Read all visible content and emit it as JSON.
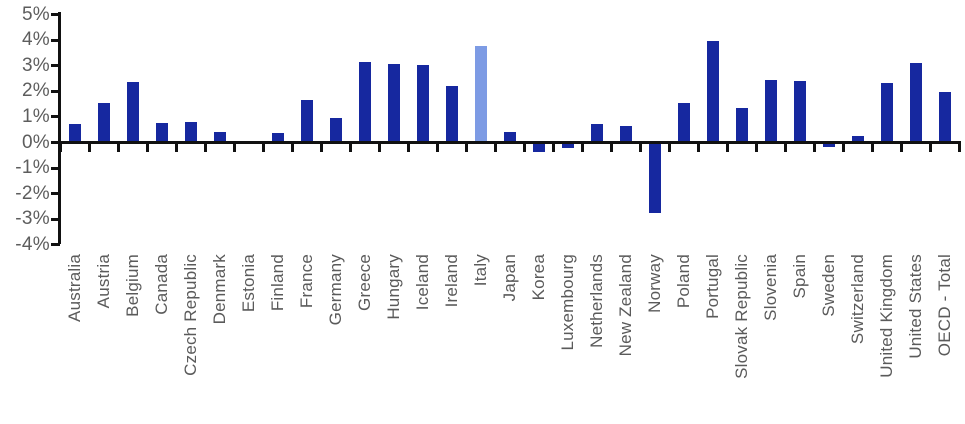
{
  "chart": {
    "bar_color": "#16289F",
    "highlight_color": "#7D9BE4",
    "axis_color": "#111111",
    "y_tick_labels": [
      "5%",
      "4%",
      "3%",
      "2%",
      "1%",
      "0%",
      "-1%",
      "-2%",
      "-3%",
      "-4%"
    ]
  },
  "chart_data": {
    "type": "bar",
    "title": "",
    "xlabel": "",
    "ylabel": "",
    "unit": "%",
    "ylim": [
      -4,
      5
    ],
    "grid": false,
    "legend": "none",
    "highlighted_category": "Italy",
    "categories": [
      "Australia",
      "Austria",
      "Belgium",
      "Canada",
      "Czech Republic",
      "Denmark",
      "Estonia",
      "Finland",
      "France",
      "Germany",
      "Greece",
      "Hungary",
      "Iceland",
      "Ireland",
      "Italy",
      "Japan",
      "Korea",
      "Luxembourg",
      "Netherlands",
      "New Zealand",
      "Norway",
      "Poland",
      "Portugal",
      "Slovak Republic",
      "Slovenia",
      "Spain",
      "Sweden",
      "Switzerland",
      "United Kingdom",
      "United States",
      "OECD - Total"
    ],
    "values": [
      0.65,
      1.5,
      2.3,
      0.7,
      0.75,
      0.35,
      0.0,
      0.3,
      1.6,
      0.9,
      3.1,
      3.0,
      2.95,
      2.15,
      3.7,
      0.35,
      -0.3,
      -0.15,
      0.65,
      0.6,
      -2.7,
      1.5,
      3.9,
      1.3,
      2.4,
      2.35,
      -0.1,
      0.2,
      2.25,
      3.05,
      1.9
    ]
  }
}
